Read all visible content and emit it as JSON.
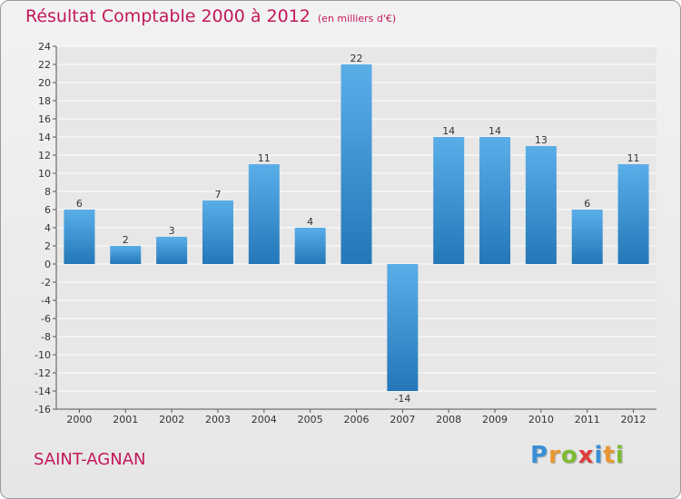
{
  "header": {
    "title": "Résultat Comptable 2000 à 2012",
    "unit": "(en milliers d'€)"
  },
  "footer": {
    "town": "SAINT-AGNAN",
    "logo": "Proxiti"
  },
  "colors": {
    "accent": "#c2185b",
    "bar_light": "#5aaee8",
    "bar_dark": "#2477b8"
  },
  "chart_data": {
    "type": "bar",
    "title": "Résultat Comptable 2000 à 2012",
    "subtitle": "(en milliers d'€)",
    "xlabel": "",
    "ylabel": "",
    "categories": [
      "2000",
      "2001",
      "2002",
      "2003",
      "2004",
      "2005",
      "2006",
      "2007",
      "2008",
      "2009",
      "2010",
      "2011",
      "2012"
    ],
    "values": [
      6,
      2,
      3,
      7,
      11,
      4,
      22,
      -14,
      14,
      14,
      13,
      6,
      11
    ],
    "ylim": [
      -16,
      24
    ],
    "yticks": [
      24,
      22,
      20,
      18,
      16,
      14,
      12,
      10,
      8,
      6,
      4,
      2,
      0,
      -2,
      -4,
      -6,
      -8,
      -10,
      -12,
      -14,
      -16
    ],
    "grid": true
  }
}
